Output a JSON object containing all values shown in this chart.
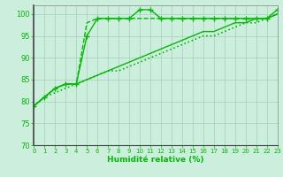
{
  "xlabel": "Humidité relative (%)",
  "bg_color": "#cceedd",
  "grid_color": "#aaccbb",
  "line_color": "#00bb00",
  "xlim": [
    0,
    23
  ],
  "ylim": [
    70,
    102
  ],
  "yticks": [
    70,
    75,
    80,
    85,
    90,
    95,
    100
  ],
  "xticks": [
    0,
    1,
    2,
    3,
    4,
    5,
    6,
    7,
    8,
    9,
    10,
    11,
    12,
    13,
    14,
    15,
    16,
    17,
    18,
    19,
    20,
    21,
    22,
    23
  ],
  "series": [
    {
      "x": [
        0,
        1,
        2,
        3,
        4,
        5,
        6,
        7,
        8,
        9,
        10,
        11,
        12,
        13,
        14,
        15,
        16,
        17,
        18,
        19,
        20,
        21,
        22,
        23
      ],
      "y": [
        79,
        81,
        83,
        84,
        84,
        95,
        99,
        99,
        99,
        99,
        101,
        101,
        99,
        99,
        99,
        99,
        99,
        99,
        99,
        99,
        99,
        99,
        99,
        101
      ],
      "style": "-",
      "marker": "+",
      "lw": 1.0,
      "ms": 4
    },
    {
      "x": [
        0,
        1,
        2,
        3,
        4,
        5,
        6,
        7,
        8,
        9,
        10,
        11,
        12,
        13,
        14,
        15,
        16,
        17,
        18,
        19,
        20,
        21,
        22,
        23
      ],
      "y": [
        79,
        81,
        83,
        84,
        84,
        98,
        99,
        99,
        99,
        99,
        99,
        99,
        99,
        99,
        99,
        99,
        99,
        99,
        99,
        99,
        99,
        99,
        99,
        100
      ],
      "style": "--",
      "marker": null,
      "lw": 1.0,
      "ms": 0
    },
    {
      "x": [
        0,
        1,
        2,
        3,
        4,
        5,
        6,
        7,
        8,
        9,
        10,
        11,
        12,
        13,
        14,
        15,
        16,
        17,
        18,
        19,
        20,
        21,
        22,
        23
      ],
      "y": [
        79,
        81,
        83,
        84,
        84,
        85,
        86,
        87,
        88,
        89,
        90,
        91,
        92,
        93,
        94,
        95,
        96,
        96,
        97,
        98,
        98,
        99,
        99,
        100
      ],
      "style": "-",
      "marker": null,
      "lw": 1.0,
      "ms": 0
    },
    {
      "x": [
        0,
        1,
        2,
        3,
        4,
        5,
        6,
        7,
        8,
        9,
        10,
        11,
        12,
        13,
        14,
        15,
        16,
        17,
        18,
        19,
        20,
        21,
        22,
        23
      ],
      "y": [
        79,
        81,
        82,
        83,
        84,
        85,
        86,
        87,
        87,
        88,
        89,
        90,
        91,
        92,
        93,
        94,
        95,
        95,
        96,
        97,
        98,
        98,
        99,
        100
      ],
      "style": ":",
      "marker": null,
      "lw": 1.2,
      "ms": 0
    }
  ]
}
